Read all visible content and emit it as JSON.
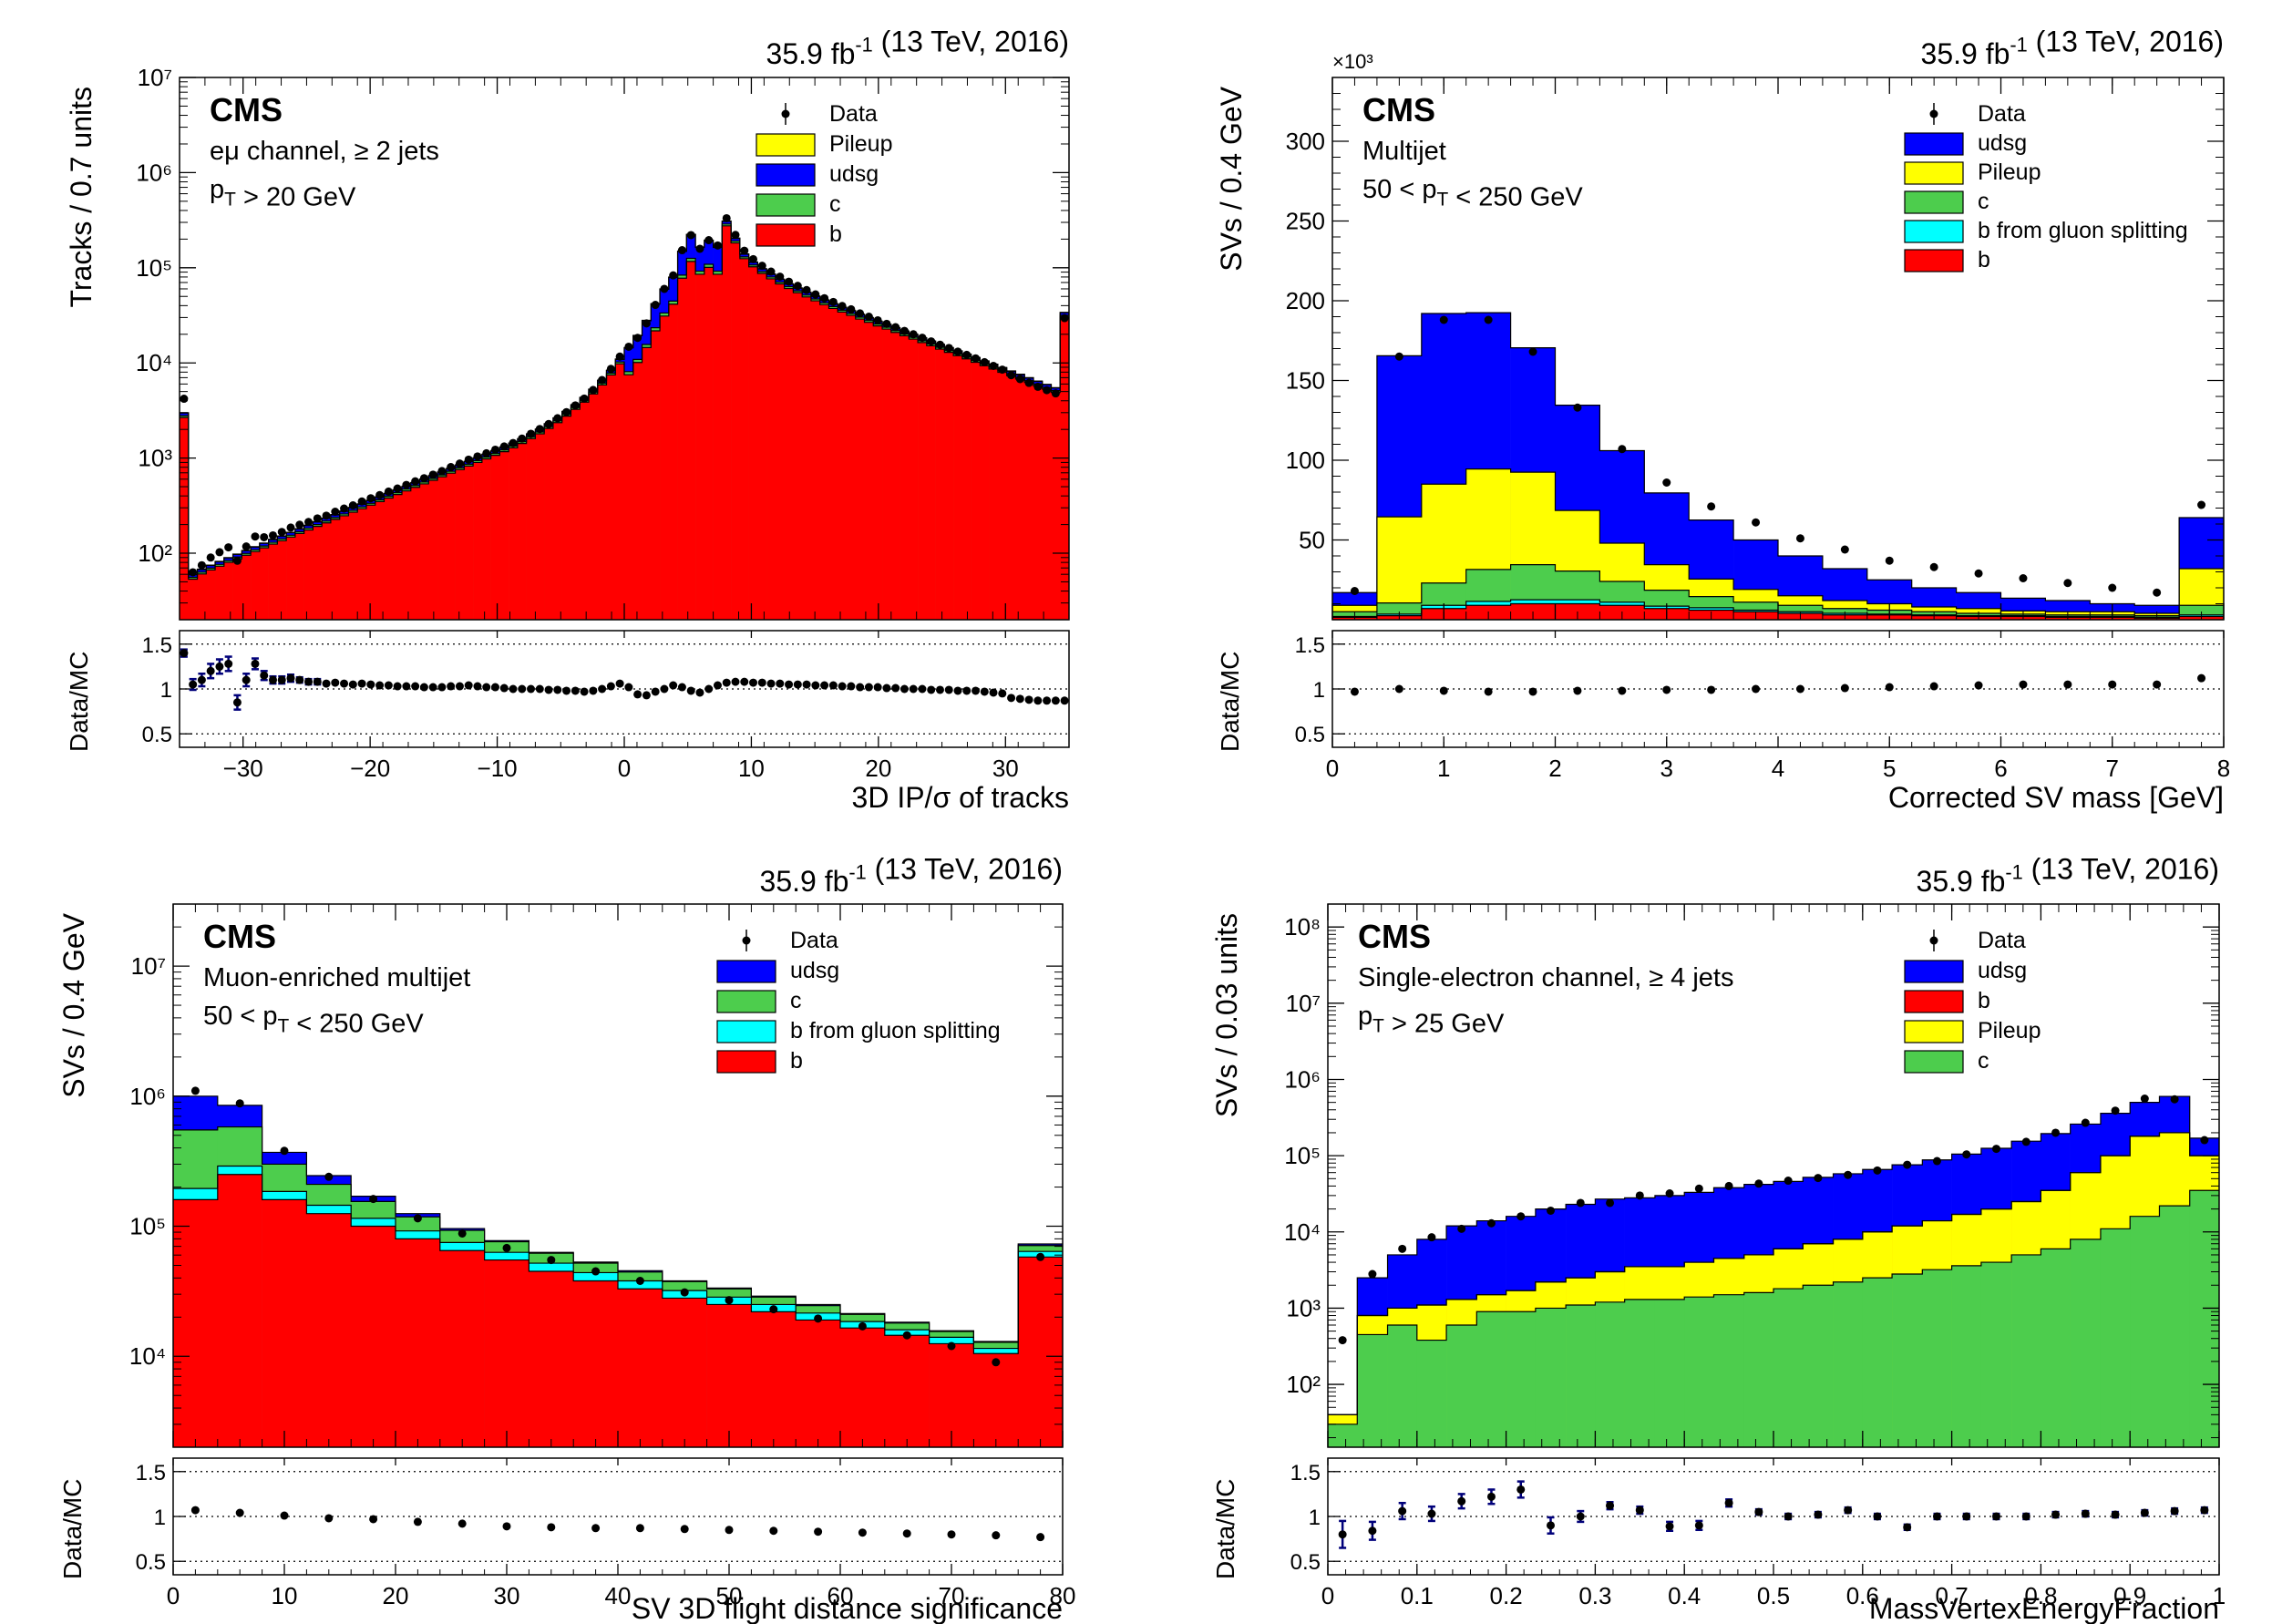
{
  "colors": {
    "data": "#000000",
    "udsg": "#0000ff",
    "pileup": "#ffff00",
    "c": "#4dcd4d",
    "b": "#ff0000",
    "gsp": "#00ffff",
    "err": "#00007a"
  },
  "chart_data": [
    {
      "type": "bar",
      "stacked_histogram": true,
      "title": "35.9 fb-1 (13 TeV, 2016)",
      "cms": "CMS",
      "ann1": "eμ channel, ≥ 2 jets",
      "ann2": "pT > 20 GeV",
      "xlabel": "3D IP/σ of tracks",
      "ylabel": "Tracks / 0.7 units",
      "ratio_ylabel": "Data/MC",
      "log_y": true,
      "xlim": [
        -35,
        35
      ],
      "ylim": [
        20,
        10000000
      ],
      "xticks": [
        -30,
        -20,
        -10,
        0,
        10,
        20,
        30
      ],
      "xtick_labels": [
        "−30",
        "−20",
        "−10",
        "0",
        "10",
        "20",
        "30"
      ],
      "yticks": [
        100,
        1000,
        10000,
        100000,
        1000000,
        10000000
      ],
      "ytick_labels": [
        "10²",
        "10³",
        "10⁴",
        "10⁵",
        "10⁶",
        "10⁷"
      ],
      "ratio_ylim": [
        0.35,
        1.65
      ],
      "ratio_yticks": [
        0.5,
        1,
        1.5
      ],
      "ratio_ytick_labels": [
        "0.5",
        "1",
        "1.5"
      ],
      "legend": [
        {
          "label": "Data",
          "kind": "data"
        },
        {
          "label": "Pileup",
          "color": "#ffff00"
        },
        {
          "label": "udsg",
          "color": "#0000ff"
        },
        {
          "label": "c",
          "color": "#4dcd4d"
        },
        {
          "label": "b",
          "color": "#ff0000"
        }
      ],
      "nbins": 100,
      "bin_width": 0.7,
      "total_mc": [
        3000,
        60,
        68,
        75,
        82,
        90,
        98,
        107,
        117,
        128,
        140,
        152,
        166,
        181,
        197,
        215,
        234,
        255,
        278,
        303,
        330,
        360,
        392,
        427,
        465,
        507,
        553,
        602,
        656,
        715,
        780,
        850,
        926,
        1010,
        1100,
        1200,
        1310,
        1440,
        1600,
        1800,
        2020,
        2300,
        2650,
        3100,
        3650,
        4350,
        5300,
        6600,
        8400,
        11000,
        14500,
        19500,
        28000,
        42000,
        60000,
        80000,
        150000,
        225000,
        165000,
        195000,
        165000,
        310000,
        205000,
        140000,
        115000,
        98000,
        86000,
        76000,
        68000,
        61500,
        55500,
        50500,
        46000,
        42000,
        38500,
        35500,
        32500,
        30000,
        27500,
        25500,
        23500,
        21700,
        20000,
        18400,
        17000,
        15700,
        14500,
        13400,
        12400,
        11400,
        10500,
        9700,
        8950,
        8250,
        7600,
        7000,
        6450,
        5950,
        5500,
        34000
      ],
      "udsg_frac": 0.06,
      "c_frac": 0.04,
      "pileup_frac": 0.01,
      "blue_peak_boost": [
        50,
        60,
        1.8
      ],
      "ratio": [
        1.4,
        1.05,
        1.1,
        1.2,
        1.25,
        1.28,
        0.85,
        1.1,
        1.28,
        1.15,
        1.1,
        1.1,
        1.12,
        1.1,
        1.08,
        1.08,
        1.06,
        1.07,
        1.06,
        1.05,
        1.06,
        1.05,
        1.04,
        1.04,
        1.03,
        1.03,
        1.03,
        1.02,
        1.02,
        1.02,
        1.03,
        1.03,
        1.04,
        1.03,
        1.02,
        1.02,
        1.01,
        1.0,
        1.0,
        1.0,
        1.0,
        0.99,
        0.99,
        0.98,
        0.98,
        0.97,
        0.98,
        1.0,
        1.03,
        1.06,
        1.02,
        0.94,
        0.93,
        0.97,
        1.0,
        1.04,
        1.02,
        0.98,
        0.96,
        1.0,
        1.04,
        1.07,
        1.08,
        1.08,
        1.07,
        1.07,
        1.06,
        1.06,
        1.05,
        1.05,
        1.05,
        1.04,
        1.04,
        1.04,
        1.03,
        1.03,
        1.02,
        1.02,
        1.02,
        1.01,
        1.01,
        1.0,
        1.0,
        1.0,
        0.99,
        0.99,
        0.99,
        0.98,
        0.98,
        0.98,
        0.97,
        0.96,
        0.95,
        0.9,
        0.89,
        0.88,
        0.87,
        0.87,
        0.87,
        0.87
      ],
      "ratio_err": [
        0.04,
        0.06,
        0.07,
        0.08,
        0.08,
        0.08,
        0.08,
        0.07,
        0.06,
        0.05,
        0.04,
        0.04,
        0.04,
        0.03,
        0.03,
        0.03
      ]
    },
    {
      "type": "bar",
      "stacked_histogram": true,
      "title": "35.9 fb-1 (13 TeV, 2016)",
      "cms": "CMS",
      "ann1": "Multijet",
      "ann2": "50 < pT < 250 GeV",
      "exponent": "×10³",
      "xlabel": "Corrected SV mass [GeV]",
      "ylabel": "SVs / 0.4 GeV",
      "ratio_ylabel": "Data/MC",
      "log_y": false,
      "xlim": [
        0,
        8
      ],
      "ylim": [
        0,
        340
      ],
      "xticks": [
        0,
        1,
        2,
        3,
        4,
        5,
        6,
        7,
        8
      ],
      "xtick_labels": [
        "0",
        "1",
        "2",
        "3",
        "4",
        "5",
        "6",
        "7",
        "8"
      ],
      "yticks": [
        50,
        100,
        150,
        200,
        250,
        300
      ],
      "ytick_labels": [
        "50",
        "100",
        "150",
        "200",
        "250",
        "300"
      ],
      "ratio_ylim": [
        0.35,
        1.65
      ],
      "ratio_yticks": [
        0.5,
        1,
        1.5
      ],
      "ratio_ytick_labels": [
        "0.5",
        "1",
        "1.5"
      ],
      "legend": [
        {
          "label": "Data",
          "kind": "data"
        },
        {
          "label": "udsg",
          "color": "#0000ff"
        },
        {
          "label": "Pileup",
          "color": "#ffff00"
        },
        {
          "label": "c",
          "color": "#4dcd4d"
        },
        {
          "label": "b from gluon splitting",
          "color": "#00ffff"
        },
        {
          "label": "b",
          "color": "#ff0000"
        }
      ],
      "bin_edges": [
        0,
        0.4,
        0.8,
        1.2,
        1.6,
        2.0,
        2.4,
        2.8,
        3.2,
        3.6,
        4.0,
        4.4,
        4.8,
        5.2,
        5.6,
        6.0,
        6.4,
        6.8,
        7.2,
        7.6,
        8.0
      ],
      "layers": {
        "b": [
          1.5,
          2.5,
          7,
          9,
          10,
          10,
          9,
          7,
          6,
          5,
          4,
          3,
          3,
          2.5,
          2,
          2,
          1.5,
          1.5,
          1,
          2
        ],
        "gsp": [
          0.5,
          1.0,
          2,
          2.5,
          2.5,
          2.5,
          2,
          1.5,
          1.5,
          1,
          1,
          1,
          0.5,
          0.5,
          0.5,
          0.5,
          0.5,
          0.5,
          0.5,
          1
        ],
        "c": [
          3,
          7,
          14,
          20,
          22,
          18,
          13,
          10,
          7,
          5,
          4,
          3,
          2.5,
          2,
          1.5,
          1,
          1,
          1,
          1,
          6
        ],
        "pileup": [
          4,
          54,
          62,
          63,
          58,
          38,
          24,
          16,
          11,
          8,
          6,
          5,
          4,
          3,
          3,
          2,
          2,
          2,
          1.5,
          23
        ],
        "udsg": [
          8,
          101,
          107,
          98,
          78,
          66,
          58,
          45,
          37,
          31,
          25,
          20,
          15,
          12,
          10,
          8,
          7,
          5,
          5,
          32
        ]
      },
      "data": [
        18,
        165,
        188,
        188,
        168,
        133,
        107,
        86,
        71,
        61,
        51,
        44,
        37,
        33,
        29,
        26,
        23,
        20,
        17,
        72
      ],
      "ratio": [
        0.97,
        1.0,
        0.98,
        0.97,
        0.97,
        0.98,
        0.98,
        0.99,
        0.99,
        1.0,
        1.0,
        1.01,
        1.02,
        1.03,
        1.04,
        1.05,
        1.05,
        1.05,
        1.05,
        1.12
      ]
    },
    {
      "type": "bar",
      "stacked_histogram": true,
      "title": "35.9 fb-1 (13 TeV, 2016)",
      "cms": "CMS",
      "ann1": "Muon-enriched multijet",
      "ann2": "50 < pT < 250 GeV",
      "xlabel": "SV 3D flight distance significance",
      "ylabel": "SVs / 0.4 GeV",
      "ratio_ylabel": "Data/MC",
      "log_y": true,
      "xlim": [
        0,
        80
      ],
      "ylim": [
        2000,
        30000000
      ],
      "xticks": [
        0,
        10,
        20,
        30,
        40,
        50,
        60,
        70,
        80
      ],
      "xtick_labels": [
        "0",
        "10",
        "20",
        "30",
        "40",
        "50",
        "60",
        "70",
        "80"
      ],
      "yticks": [
        10000,
        100000,
        1000000,
        10000000
      ],
      "ytick_labels": [
        "10⁴",
        "10⁵",
        "10⁶",
        "10⁷"
      ],
      "ratio_ylim": [
        0.35,
        1.65
      ],
      "ratio_yticks": [
        0.5,
        1,
        1.5
      ],
      "ratio_ytick_labels": [
        "0.5",
        "1",
        "1.5"
      ],
      "legend": [
        {
          "label": "Data",
          "kind": "data"
        },
        {
          "label": "udsg",
          "color": "#0000ff"
        },
        {
          "label": "c",
          "color": "#4dcd4d"
        },
        {
          "label": "b from gluon splitting",
          "color": "#00ffff"
        },
        {
          "label": "b",
          "color": "#ff0000"
        }
      ],
      "bin_edges": [
        0,
        4,
        8,
        12,
        16,
        20,
        24,
        28,
        32,
        36,
        40,
        44,
        48,
        52,
        56,
        60,
        64,
        68,
        72,
        76,
        80
      ],
      "stack_tops": {
        "b": [
          160000,
          250000,
          160000,
          125000,
          100000,
          80000,
          65000,
          55000,
          45000,
          38000,
          33000,
          28000,
          25000,
          22000,
          19000,
          16500,
          14500,
          12500,
          10500,
          58000
        ],
        "gsp": [
          195000,
          290000,
          185000,
          145000,
          115000,
          92000,
          75000,
          63000,
          52000,
          44000,
          38000,
          32000,
          28500,
          25000,
          21500,
          18500,
          16000,
          14000,
          11500,
          64000
        ],
        "c": [
          550000,
          580000,
          300000,
          210000,
          155000,
          118000,
          93000,
          76000,
          62000,
          52000,
          44500,
          37500,
          33000,
          28500,
          24500,
          21000,
          18000,
          15500,
          12800,
          71000
        ],
        "udsg": [
          1000000,
          850000,
          370000,
          245000,
          170000,
          125000,
          96000,
          77500,
          63000,
          53000,
          45500,
          38000,
          33500,
          29000,
          25000,
          21300,
          18300,
          15700,
          13000,
          73000
        ]
      },
      "data": [
        1100000,
        880000,
        380000,
        240000,
        162000,
        115000,
        88000,
        68000,
        55000,
        45000,
        38000,
        31000,
        27000,
        23000,
        19500,
        17000,
        14500,
        12000,
        9000,
        58000
      ],
      "ratio": [
        1.07,
        1.04,
        1.01,
        0.98,
        0.97,
        0.94,
        0.92,
        0.89,
        0.88,
        0.87,
        0.87,
        0.86,
        0.85,
        0.84,
        0.83,
        0.82,
        0.81,
        0.8,
        0.79,
        0.77
      ]
    },
    {
      "type": "bar",
      "stacked_histogram": true,
      "title": "35.9 fb-1 (13 TeV, 2016)",
      "cms": "CMS",
      "ann1": "Single-electron channel, ≥ 4 jets",
      "ann2": "pT > 25 GeV",
      "xlabel": "MassVertexEnergyFraction",
      "ylabel": "SVs / 0.03 units",
      "ratio_ylabel": "Data/MC",
      "log_y": true,
      "xlim": [
        0,
        1
      ],
      "ylim": [
        15,
        200000000
      ],
      "xticks": [
        0,
        0.1,
        0.2,
        0.3,
        0.4,
        0.5,
        0.6,
        0.7,
        0.8,
        0.9,
        1
      ],
      "xtick_labels": [
        "0",
        "0.1",
        "0.2",
        "0.3",
        "0.4",
        "0.5",
        "0.6",
        "0.7",
        "0.8",
        "0.9",
        "1"
      ],
      "yticks": [
        100,
        1000,
        10000,
        100000,
        1000000,
        10000000,
        100000000
      ],
      "ytick_labels": [
        "10²",
        "10³",
        "10⁴",
        "10⁵",
        "10⁶",
        "10⁷",
        "10⁸"
      ],
      "ratio_ylim": [
        0.35,
        1.65
      ],
      "ratio_yticks": [
        0.5,
        1,
        1.5
      ],
      "ratio_ytick_labels": [
        "0.5",
        "1",
        "1.5"
      ],
      "legend": [
        {
          "label": "Data",
          "kind": "data"
        },
        {
          "label": "udsg",
          "color": "#0000ff"
        },
        {
          "label": "b",
          "color": "#ff0000"
        },
        {
          "label": "Pileup",
          "color": "#ffff00"
        },
        {
          "label": "c",
          "color": "#4dcd4d"
        }
      ],
      "bin_edges": [
        0,
        0.033,
        0.067,
        0.1,
        0.133,
        0.167,
        0.2,
        0.233,
        0.267,
        0.3,
        0.333,
        0.367,
        0.4,
        0.433,
        0.467,
        0.5,
        0.533,
        0.567,
        0.6,
        0.633,
        0.667,
        0.7,
        0.733,
        0.767,
        0.8,
        0.833,
        0.867,
        0.9,
        0.933,
        0.967,
        1.0
      ],
      "stack_tops": {
        "c": [
          30,
          450,
          600,
          380,
          600,
          900,
          900,
          1000,
          1100,
          1200,
          1300,
          1300,
          1400,
          1500,
          1600,
          1800,
          2000,
          2200,
          2500,
          2800,
          3200,
          3600,
          4000,
          5000,
          6000,
          8000,
          11000,
          16000,
          22000,
          35000
        ],
        "b": [
          40,
          800,
          1000,
          1100,
          1300,
          1500,
          1700,
          2200,
          2500,
          3000,
          3500,
          3500,
          4000,
          4500,
          5000,
          6000,
          7000,
          8000,
          10000,
          12000,
          14000,
          17000,
          20000,
          25000,
          35000,
          60000,
          100000,
          180000,
          200000,
          100000
        ],
        "pileup": [
          40,
          800,
          1000,
          1100,
          1300,
          1500,
          1700,
          2200,
          2500,
          3000,
          3500,
          3500,
          4000,
          4500,
          5000,
          6000,
          7000,
          8000,
          10000,
          12000,
          14000,
          17000,
          20000,
          25000,
          35000,
          60000,
          100000,
          180000,
          200000,
          100000
        ],
        "udsg": [
          40,
          2500,
          5000,
          8000,
          12000,
          14000,
          16000,
          20000,
          23000,
          27000,
          28000,
          30000,
          33000,
          38000,
          42000,
          46000,
          52000,
          58000,
          66000,
          76000,
          88000,
          105000,
          125000,
          155000,
          195000,
          260000,
          360000,
          500000,
          600000,
          170000
        ]
      },
      "data": [
        380,
        2800,
        6000,
        8500,
        11000,
        13000,
        16000,
        19000,
        24000,
        24000,
        30000,
        32000,
        37000,
        40000,
        43000,
        47000,
        51000,
        56000,
        64000,
        76000,
        85000,
        104000,
        123000,
        152000,
        200000,
        270000,
        390000,
        560000,
        550000,
        160000
      ],
      "ratio": [
        0.8,
        0.84,
        1.06,
        1.03,
        1.17,
        1.22,
        1.3,
        0.9,
        1.0,
        1.12,
        1.07,
        0.89,
        0.9,
        1.15,
        1.05,
        1.0,
        1.02,
        1.07,
        1.0,
        0.88,
        1.0,
        1.0,
        1.0,
        1.0,
        1.02,
        1.03,
        1.02,
        1.04,
        1.06,
        1.07
      ],
      "ratio_err": [
        0.15,
        0.1,
        0.09,
        0.08,
        0.08,
        0.08,
        0.09,
        0.09,
        0.06,
        0.04,
        0.04,
        0.05,
        0.05,
        0.04,
        0.03,
        0.03,
        0.03,
        0.03,
        0.03,
        0.03,
        0.03,
        0.03,
        0.03,
        0.03,
        0.03,
        0.03,
        0.03,
        0.03,
        0.03,
        0.03
      ]
    }
  ]
}
